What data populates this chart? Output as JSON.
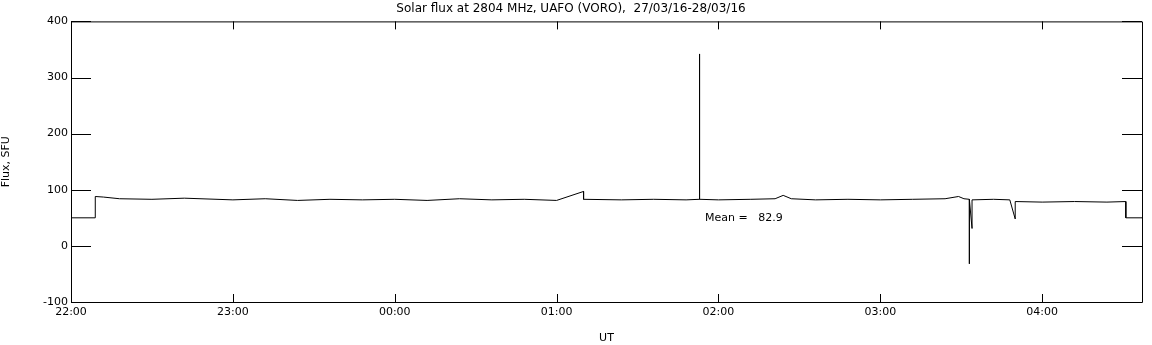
{
  "chart_data": {
    "type": "line",
    "title": "Solar flux at 2804 MHz, UAFO (VORO),  27/03/16-28/03/16",
    "xlabel": "UT",
    "ylabel": "Flux, SFU",
    "annotations": [
      "Mean =   82.9"
    ],
    "xlim": [
      "--03-27T22:00",
      "--03-28T04:37"
    ],
    "ylim": [
      -100,
      400
    ],
    "xticks": [
      {
        "value": "--03-27T22:00",
        "label": "22:00"
      },
      {
        "value": "--03-27T23:00",
        "label": "23:00"
      },
      {
        "value": "--03-28T00:00",
        "label": "00:00"
      },
      {
        "value": "--03-28T01:00",
        "label": "01:00"
      },
      {
        "value": "--03-28T02:00",
        "label": "02:00"
      },
      {
        "value": "--03-28T03:00",
        "label": "03:00"
      },
      {
        "value": "--03-28T04:00",
        "label": "04:00"
      }
    ],
    "yticks": [
      -100,
      0,
      100,
      200,
      300,
      400
    ],
    "grid": false,
    "legend": false,
    "marker": "none",
    "line_style": "solid",
    "series": [
      {
        "color": "#000000",
        "x": [
          "--03-27T22:00",
          "--03-27T22:09",
          "--03-27T22:09",
          "--03-27T22:12",
          "--03-27T22:18",
          "--03-27T22:30",
          "--03-27T22:42",
          "--03-27T23:00",
          "--03-27T23:12",
          "--03-27T23:24",
          "--03-27T23:36",
          "--03-27T23:48",
          "--03-28T00:00",
          "--03-28T00:12",
          "--03-28T00:24",
          "--03-28T00:36",
          "--03-28T00:48",
          "--03-28T01:00",
          "--03-28T01:10",
          "--03-28T01:10",
          "--03-28T01:24",
          "--03-28T01:36",
          "--03-28T01:48",
          "--03-28T01:53",
          "--03-28T01:53",
          "--03-28T01:53",
          "--03-28T02:00",
          "--03-28T02:12",
          "--03-28T02:21",
          "--03-28T02:24",
          "--03-28T02:27",
          "--03-28T02:36",
          "--03-28T02:48",
          "--03-28T03:00",
          "--03-28T03:12",
          "--03-28T03:24",
          "--03-28T03:29",
          "--03-28T03:31",
          "--03-28T03:33",
          "--03-28T03:33",
          "--03-28T03:33",
          "--03-28T03:34",
          "--03-28T03:34",
          "--03-28T03:42",
          "--03-28T03:48",
          "--03-28T03:50",
          "--03-28T03:50",
          "--03-28T04:00",
          "--03-28T04:12",
          "--03-28T04:24",
          "--03-28T04:31",
          "--03-28T04:31",
          "--03-28T04:37"
        ],
        "values": [
          50,
          50,
          88,
          87,
          84,
          83,
          85,
          82,
          84,
          81,
          83,
          82,
          83,
          81,
          84,
          82,
          83,
          81,
          97,
          83,
          82,
          83,
          82,
          83,
          342,
          83,
          82,
          83,
          84,
          90,
          84,
          82,
          83,
          82,
          83,
          84,
          88,
          84,
          83,
          -32,
          83,
          31,
          82,
          83,
          82,
          48,
          79,
          78,
          79,
          78,
          79,
          50,
          50
        ]
      }
    ]
  }
}
